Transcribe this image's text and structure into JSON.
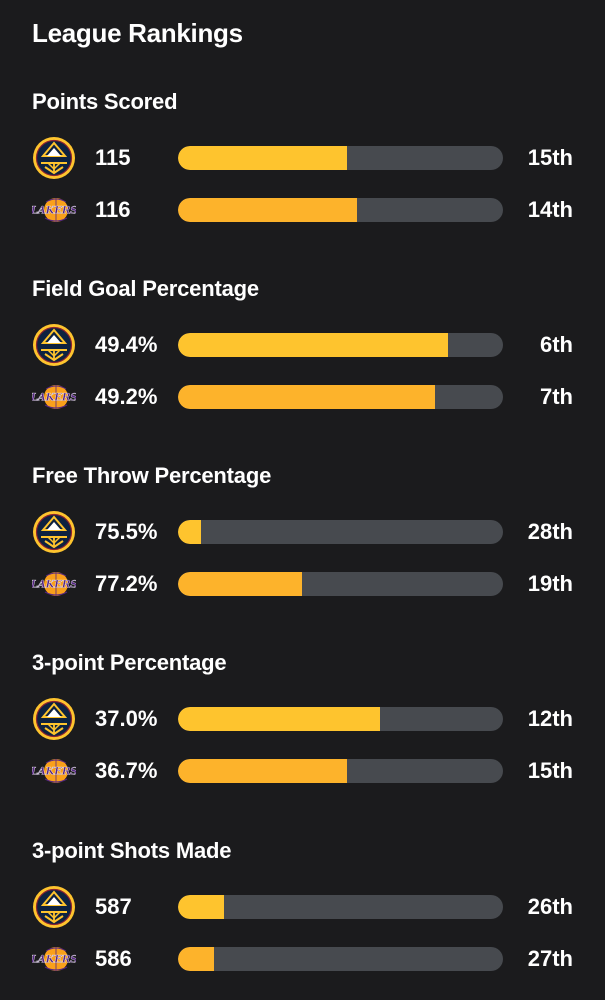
{
  "page": {
    "title": "League Rankings"
  },
  "teams": {
    "nuggets": {
      "logo_icon": "nuggets-logo-icon",
      "color": "#fec42e"
    },
    "lakers": {
      "logo_icon": "lakers-logo-icon",
      "color": "#fdb32b",
      "logo_text": "LAKERS"
    }
  },
  "colors": {
    "background": "#1b1b1d",
    "bar_track": "#474a4f",
    "text": "#ffffff"
  },
  "sections": [
    {
      "title": "Points Scored",
      "rows": [
        {
          "team": "nuggets",
          "value": "115",
          "rank": "15th",
          "fill": 0.52
        },
        {
          "team": "lakers",
          "value": "116",
          "rank": "14th",
          "fill": 0.55
        }
      ]
    },
    {
      "title": "Field Goal Percentage",
      "rows": [
        {
          "team": "nuggets",
          "value": "49.4%",
          "rank": "6th",
          "fill": 0.83
        },
        {
          "team": "lakers",
          "value": "49.2%",
          "rank": "7th",
          "fill": 0.79
        }
      ]
    },
    {
      "title": "Free Throw Percentage",
      "rows": [
        {
          "team": "nuggets",
          "value": "75.5%",
          "rank": "28th",
          "fill": 0.07
        },
        {
          "team": "lakers",
          "value": "77.2%",
          "rank": "19th",
          "fill": 0.38
        }
      ]
    },
    {
      "title": "3-point Percentage",
      "rows": [
        {
          "team": "nuggets",
          "value": "37.0%",
          "rank": "12th",
          "fill": 0.62
        },
        {
          "team": "lakers",
          "value": "36.7%",
          "rank": "15th",
          "fill": 0.52
        }
      ]
    },
    {
      "title": "3-point Shots Made",
      "rows": [
        {
          "team": "nuggets",
          "value": "587",
          "rank": "26th",
          "fill": 0.14
        },
        {
          "team": "lakers",
          "value": "586",
          "rank": "27th",
          "fill": 0.11
        }
      ]
    }
  ]
}
